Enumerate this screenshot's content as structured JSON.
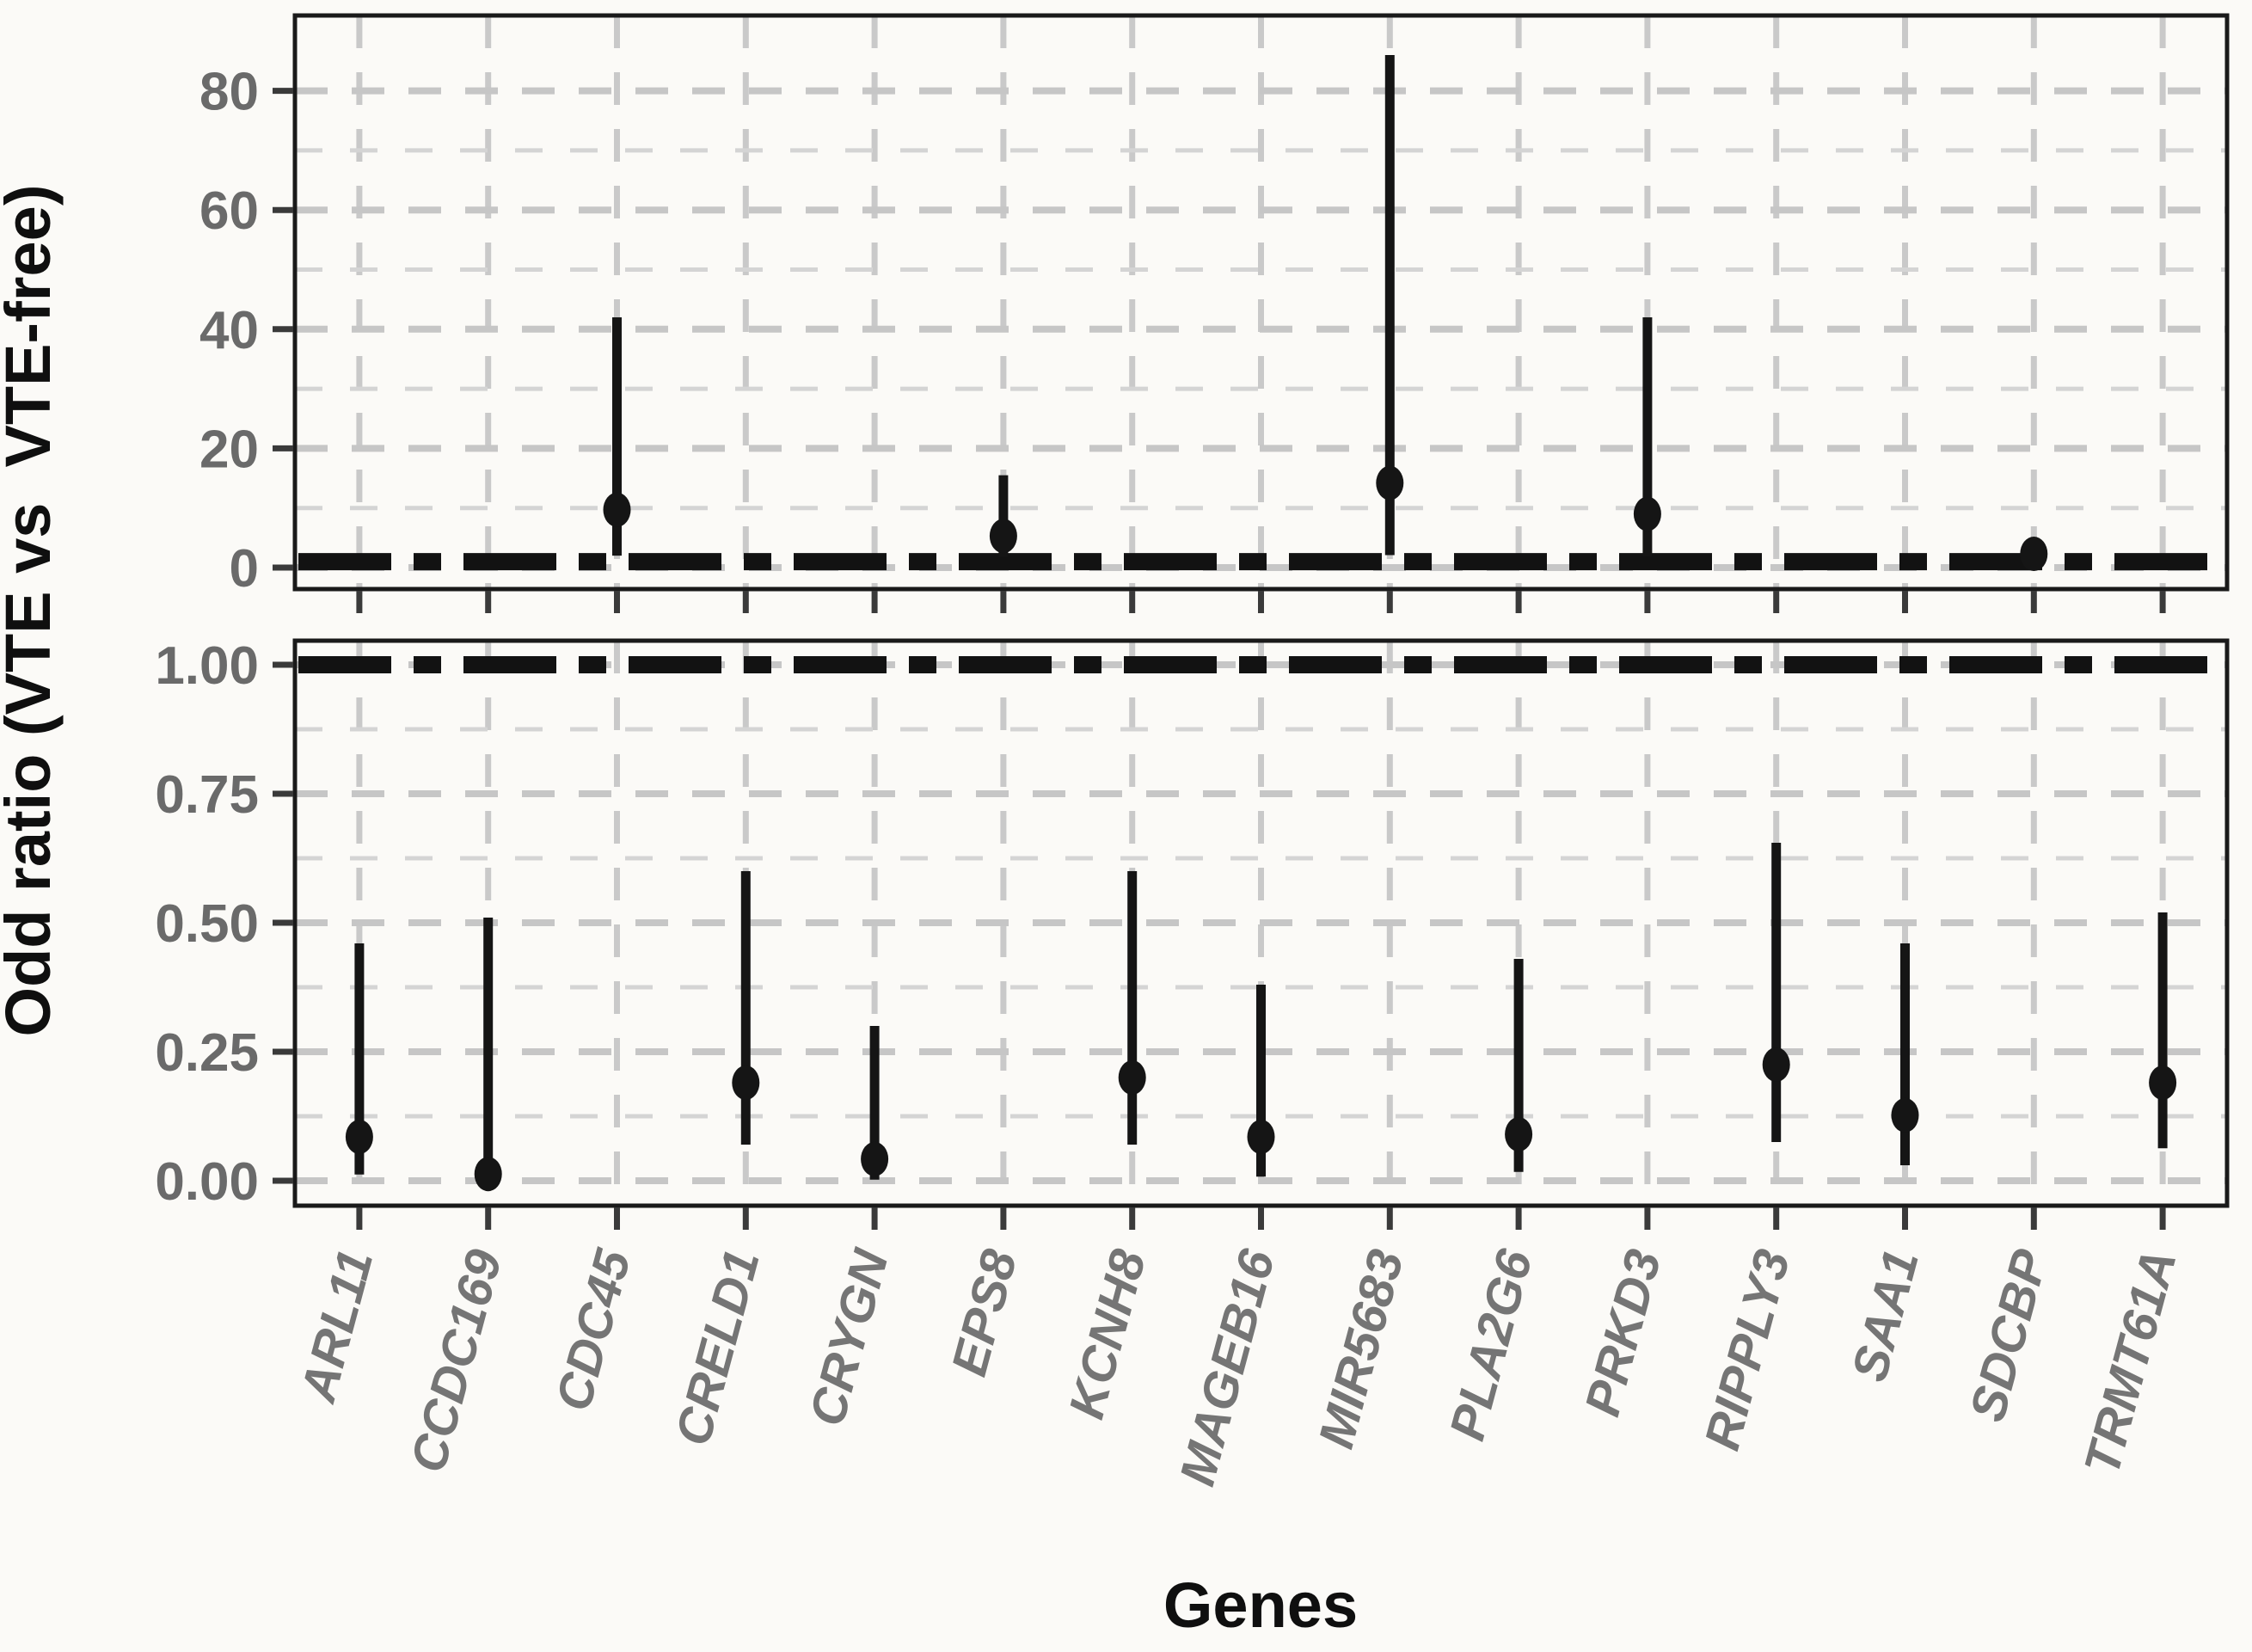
{
  "figure": {
    "background": "#fbfaf7"
  },
  "y_axis": {
    "title": "Odd ratio (VTE vs  VTE-free)"
  },
  "x_axis": {
    "title": "Genes"
  },
  "chart_data": {
    "type": "scatter",
    "subtype": "pointrange-forest-plot",
    "title": "",
    "xlabel": "Genes",
    "ylabel": "Odd ratio (VTE vs  VTE-free)",
    "grid": "dashed-gray-major-minor",
    "legend_position": "none",
    "categories": [
      "ARL11",
      "CCDC169",
      "CDC45",
      "CRELD1",
      "CRYGN",
      "EPS8",
      "KCNH8",
      "MAGEB16",
      "MIR5683",
      "PLA2G6",
      "PRKD3",
      "RIPPLY3",
      "SAA1",
      "SDCBP",
      "TRMT61A"
    ],
    "panels": [
      {
        "id": "upper",
        "ylim": [
          -3.6,
          92.6
        ],
        "yticks": [
          0,
          20,
          40,
          60,
          80
        ],
        "ytick_labels": [
          "0",
          "20",
          "40",
          "60",
          "80"
        ],
        "minor_ticks": [
          10,
          30,
          50,
          70
        ],
        "reference_line_y": 1,
        "points": [
          {
            "gene": "CDC45",
            "or": 9.7,
            "lo": 2.0,
            "hi": 42.0
          },
          {
            "gene": "EPS8",
            "or": 5.3,
            "lo": 1.8,
            "hi": 15.5
          },
          {
            "gene": "MIR5683",
            "or": 14.2,
            "lo": 2.1,
            "hi": 86.0
          },
          {
            "gene": "PRKD3",
            "or": 9.0,
            "lo": 1.9,
            "hi": 42.0
          },
          {
            "gene": "SDCBP",
            "or": 2.3,
            "lo": 1.3,
            "hi": 3.4
          }
        ]
      },
      {
        "id": "lower",
        "ylim": [
          -0.048,
          1.047
        ],
        "yticks": [
          0,
          0.25,
          0.5,
          0.75,
          1.0
        ],
        "ytick_labels": [
          "0.00",
          "0.25",
          "0.50",
          "0.75",
          "1.00"
        ],
        "minor_ticks": [
          0.125,
          0.375,
          0.625,
          0.875
        ],
        "reference_line_y": 1,
        "points": [
          {
            "gene": "ARL11",
            "or": 0.085,
            "lo": 0.012,
            "hi": 0.46
          },
          {
            "gene": "CCDC169",
            "or": 0.013,
            "lo": 0.001,
            "hi": 0.51
          },
          {
            "gene": "CRELD1",
            "or": 0.19,
            "lo": 0.07,
            "hi": 0.6
          },
          {
            "gene": "CRYGN",
            "or": 0.042,
            "lo": 0.002,
            "hi": 0.3
          },
          {
            "gene": "KCNH8",
            "or": 0.2,
            "lo": 0.07,
            "hi": 0.6
          },
          {
            "gene": "MAGEB16",
            "or": 0.085,
            "lo": 0.008,
            "hi": 0.38
          },
          {
            "gene": "PLA2G6",
            "or": 0.09,
            "lo": 0.017,
            "hi": 0.43
          },
          {
            "gene": "RIPPLY3",
            "or": 0.225,
            "lo": 0.075,
            "hi": 0.655
          },
          {
            "gene": "SAA1",
            "or": 0.127,
            "lo": 0.03,
            "hi": 0.46
          },
          {
            "gene": "TRMT61A",
            "or": 0.19,
            "lo": 0.063,
            "hi": 0.52
          }
        ]
      }
    ]
  },
  "styles": {
    "panel_border": "#1a1a1a",
    "grid_major": "#c6c6c6",
    "grid_minor": "#d4d4d4",
    "vertical_grid": "#c9c9c9",
    "reference_line": "#121212",
    "data_color": "#151515",
    "tick_color": "#3a3a3a",
    "ytick_label_color": "#6a6a6a",
    "gene_label_color": "#757575",
    "title_color": "#0f0f0f"
  }
}
